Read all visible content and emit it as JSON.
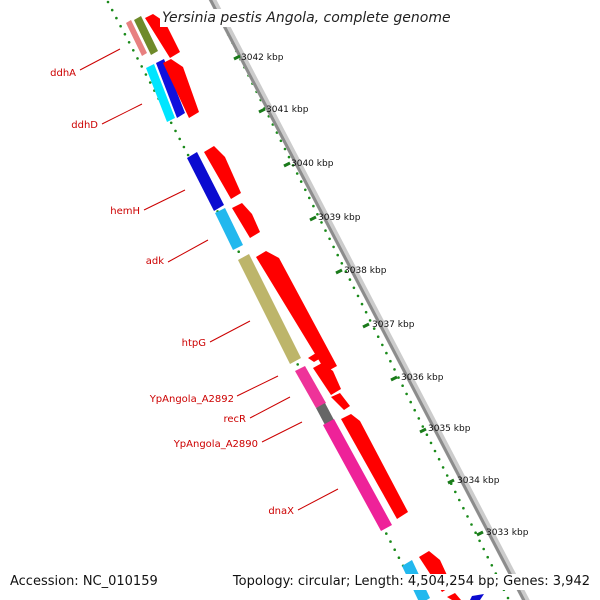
{
  "title": "Yersinia pestis Angola, complete genome",
  "footer": {
    "accession": "Accession: NC_010159",
    "topology": "Topology: circular; Length: 4,504,254 bp; Genes: 3,942"
  },
  "colors": {
    "scale_dots": "#1a8a1a",
    "backbone": "#909090",
    "gene_label": "#cc0000",
    "cds_arrow": "#ff0000"
  },
  "scale_ticks": [
    {
      "label": "3042 kbp"
    },
    {
      "label": "3041 kbp"
    },
    {
      "label": "3040 kbp"
    },
    {
      "label": "3039 kbp"
    },
    {
      "label": "3038 kbp"
    },
    {
      "label": "3037 kbp"
    },
    {
      "label": "3036 kbp"
    },
    {
      "label": "3035 kbp"
    },
    {
      "label": "3034 kbp"
    },
    {
      "label": "3033 kbp"
    }
  ],
  "gene_labels": [
    {
      "label": "ddhA"
    },
    {
      "label": "ddhD"
    },
    {
      "label": "hemH"
    },
    {
      "label": "adk"
    },
    {
      "label": "htpG"
    },
    {
      "label": "YpAngola_A2892"
    },
    {
      "label": "recR"
    },
    {
      "label": "YpAngola_A2890"
    },
    {
      "label": "dnaX"
    }
  ]
}
